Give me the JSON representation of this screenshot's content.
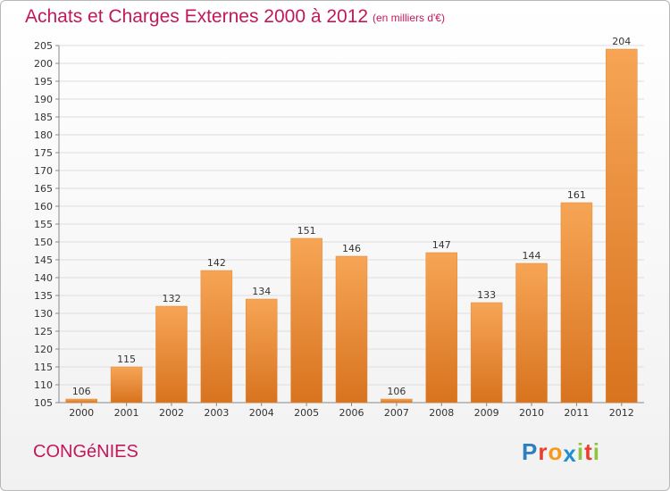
{
  "header": {
    "title": "Achats et Charges Externes 2000 à 2012",
    "subtitle": "(en milliers d'€)"
  },
  "footer": {
    "commune": "CONGéNIES",
    "logo_letters": [
      "P",
      "r",
      "o",
      "x",
      "i",
      "t",
      "i"
    ],
    "logo_colors": [
      "#2e7fc1",
      "#e8402f",
      "#f59a1b",
      "#1f8fd0",
      "#8cc63e",
      "#e8402f",
      "#8cc63e"
    ]
  },
  "colors": {
    "bar_light": "#f6a555",
    "bar_dark": "#d8731f",
    "grid": "#dddddd",
    "accent": "#c2185b"
  },
  "chart_data": {
    "type": "bar",
    "categories": [
      "2000",
      "2001",
      "2002",
      "2003",
      "2004",
      "2005",
      "2006",
      "2007",
      "2008",
      "2009",
      "2010",
      "2011",
      "2012"
    ],
    "values": [
      106,
      115,
      132,
      142,
      134,
      151,
      146,
      106,
      147,
      133,
      144,
      161,
      204
    ],
    "title": "Achats et Charges Externes 2000 à 2012",
    "subtitle": "(en milliers d'€)",
    "xlabel": "",
    "ylabel": "",
    "ylim": [
      105,
      205
    ],
    "yticks": [
      105,
      110,
      115,
      120,
      125,
      130,
      135,
      140,
      145,
      150,
      155,
      160,
      165,
      170,
      175,
      180,
      185,
      190,
      195,
      200,
      205
    ],
    "grid": true,
    "legend": "none"
  }
}
